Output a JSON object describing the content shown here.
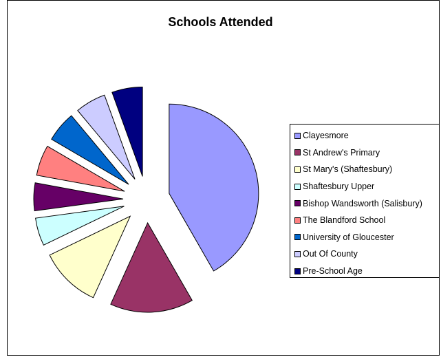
{
  "chart_data": {
    "type": "pie",
    "title": "Schools Attended",
    "exploded": true,
    "legend_position": "right",
    "slices": [
      {
        "label": "Clayesmore",
        "value": 41.5,
        "color": "#9999ff"
      },
      {
        "label": "St Andrew's Primary",
        "value": 15.0,
        "color": "#993366"
      },
      {
        "label": "St Mary's (Shaftesbury)",
        "value": 11.0,
        "color": "#ffffcc"
      },
      {
        "label": "Shaftesbury Upper",
        "value": 5.0,
        "color": "#ccffff"
      },
      {
        "label": "Bishop Wandsworth (Salisbury)",
        "value": 5.0,
        "color": "#660066"
      },
      {
        "label": "The Blandford School",
        "value": 5.5,
        "color": "#ff8080"
      },
      {
        "label": "University of Gloucester",
        "value": 5.5,
        "color": "#0066cc"
      },
      {
        "label": "Out Of County",
        "value": 5.5,
        "color": "#ccccff"
      },
      {
        "label": "Pre-School Age",
        "value": 5.5,
        "color": "#000080"
      }
    ]
  }
}
